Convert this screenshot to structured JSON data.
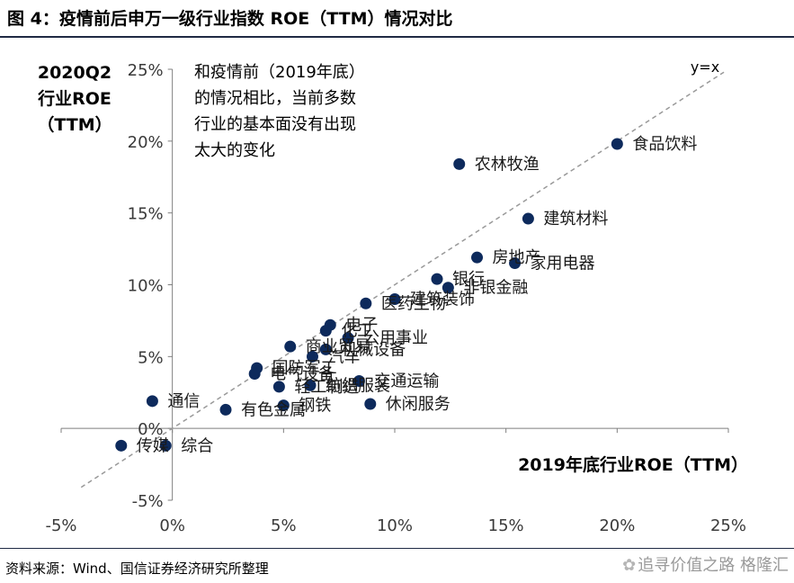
{
  "header": {
    "title": "图 4：疫情前后申万一级行业指数 ROE（TTM）情况对比"
  },
  "footer": {
    "source": "资料来源：Wind、国信证券经济研究所整理",
    "watermark": "追寻价值之路 格隆汇"
  },
  "chart_data": {
    "type": "scatter",
    "title": "",
    "xlabel": "2019年底行业ROE（TTM）",
    "ylabel_lines": [
      "2020Q2",
      "行业ROE",
      "（TTM）"
    ],
    "xlim": [
      -5,
      25
    ],
    "ylim": [
      -5,
      25
    ],
    "x_ticks": [
      "-5%",
      "0%",
      "5%",
      "10%",
      "15%",
      "20%",
      "25%"
    ],
    "y_ticks": [
      "-5%",
      "0%",
      "5%",
      "10%",
      "15%",
      "20%",
      "25%"
    ],
    "grid": false,
    "legend": "none",
    "reference_line": {
      "label": "y=x",
      "style": "dashed",
      "color": "#999999"
    },
    "annotation": [
      "和疫情前（2019年底）",
      "的情况相比，当前多数",
      "行业的基本面没有出现",
      "太大的变化"
    ],
    "marker_color": "#0d2a5c",
    "points": [
      {
        "label": "食品饮料",
        "x": 20.0,
        "y": 19.8
      },
      {
        "label": "农林牧渔",
        "x": 12.9,
        "y": 18.4
      },
      {
        "label": "建筑材料",
        "x": 16.0,
        "y": 14.6
      },
      {
        "label": "房地产",
        "x": 13.7,
        "y": 11.9
      },
      {
        "label": "家用电器",
        "x": 15.4,
        "y": 11.5
      },
      {
        "label": "银行",
        "x": 11.9,
        "y": 10.4
      },
      {
        "label": "非银金融",
        "x": 12.4,
        "y": 9.8
      },
      {
        "label": "医药生物",
        "x": 8.7,
        "y": 8.7
      },
      {
        "label": "建筑装饰",
        "x": 10.0,
        "y": 9.0
      },
      {
        "label": "电子",
        "x": 7.1,
        "y": 7.2
      },
      {
        "label": "化工",
        "x": 6.9,
        "y": 6.8
      },
      {
        "label": "公用事业",
        "x": 7.9,
        "y": 6.3
      },
      {
        "label": "商业贸易",
        "x": 5.3,
        "y": 5.7
      },
      {
        "label": "机械设备",
        "x": 6.9,
        "y": 5.5
      },
      {
        "label": "国防军工",
        "x": 3.8,
        "y": 4.2
      },
      {
        "label": "汽车",
        "x": 6.3,
        "y": 5.0
      },
      {
        "label": "电气设备",
        "x": 3.7,
        "y": 3.8
      },
      {
        "label": "交通运输",
        "x": 8.4,
        "y": 3.3
      },
      {
        "label": "纺织服装",
        "x": 6.2,
        "y": 3.0
      },
      {
        "label": "轻工制造",
        "x": 4.8,
        "y": 2.9
      },
      {
        "label": "通信",
        "x": -0.9,
        "y": 1.9
      },
      {
        "label": "休闲服务",
        "x": 8.9,
        "y": 1.7
      },
      {
        "label": "钢铁",
        "x": 5.0,
        "y": 1.6
      },
      {
        "label": "有色金属",
        "x": 2.4,
        "y": 1.3
      },
      {
        "label": "传媒",
        "x": -2.3,
        "y": -1.2
      },
      {
        "label": "综合",
        "x": -0.3,
        "y": -1.2
      }
    ]
  }
}
